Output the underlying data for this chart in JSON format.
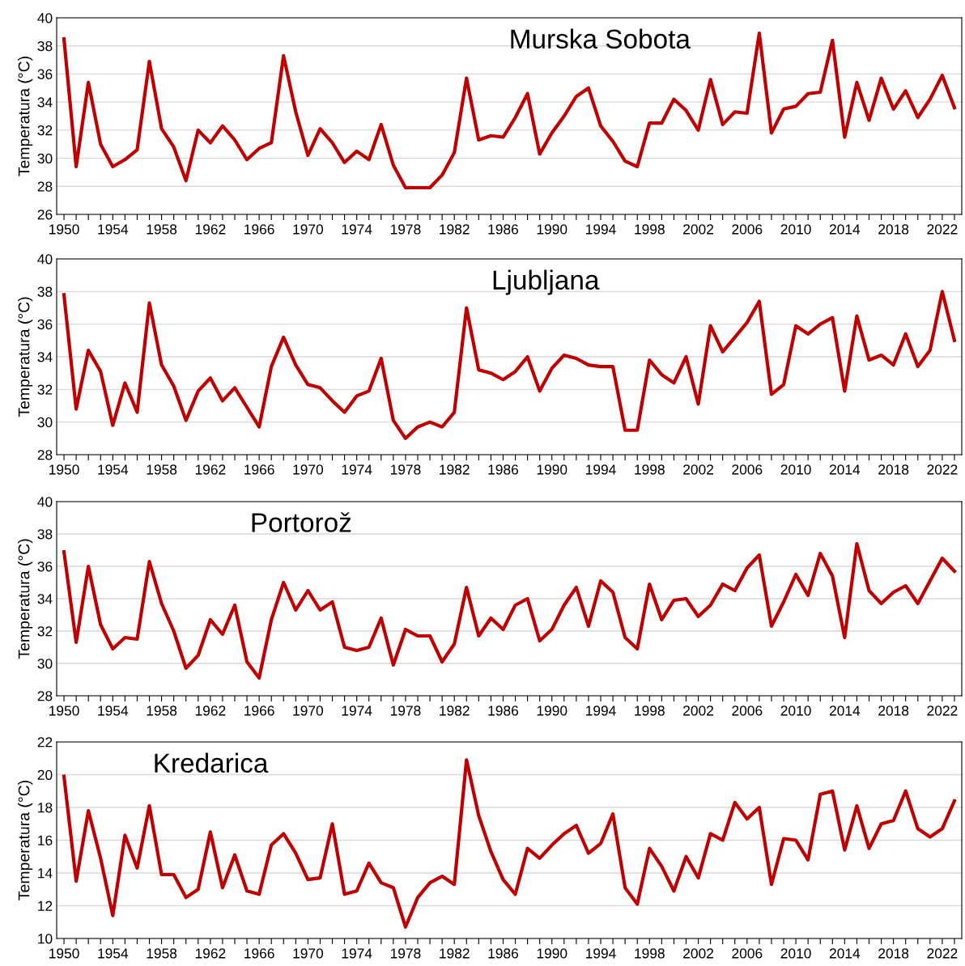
{
  "chart_data": [
    {
      "type": "line",
      "title": "Murska Sobota",
      "ylabel": "Temperatura (°C)",
      "categories": [
        "1950",
        null,
        null,
        null,
        "1954",
        null,
        null,
        null,
        "1958",
        null,
        null,
        null,
        "1962",
        null,
        null,
        null,
        "1966",
        null,
        null,
        null,
        "1970",
        null,
        null,
        null,
        "1974",
        null,
        null,
        null,
        "1978",
        null,
        null,
        null,
        "1982",
        null,
        null,
        null,
        "1986",
        null,
        null,
        null,
        "1990",
        null,
        null,
        null,
        "1994",
        null,
        null,
        null,
        "1998",
        null,
        null,
        null,
        "2002",
        null,
        null,
        null,
        "2006",
        null,
        null,
        null,
        "2010",
        null,
        null,
        null,
        "2014",
        null,
        null,
        null,
        "2018",
        null,
        null,
        null,
        "2022",
        null
      ],
      "ylim": [
        26,
        40
      ],
      "yticks": [
        26,
        28,
        30,
        32,
        34,
        36,
        38,
        40
      ],
      "grid": "y",
      "marker": "none",
      "line_style": "solid",
      "series": [
        {
          "color": "#c00000",
          "values": [
            38.5,
            29.4,
            35.4,
            31.0,
            29.4,
            29.9,
            30.6,
            36.9,
            32.1,
            30.8,
            28.4,
            32.0,
            31.1,
            32.3,
            31.3,
            29.9,
            30.7,
            31.1,
            37.3,
            33.3,
            30.2,
            32.1,
            31.1,
            29.7,
            30.5,
            29.9,
            32.4,
            29.5,
            27.9,
            27.9,
            27.9,
            28.8,
            30.4,
            35.7,
            31.3,
            31.6,
            31.5,
            32.9,
            34.6,
            30.3,
            31.8,
            33.0,
            34.4,
            35.0,
            32.3,
            31.2,
            29.8,
            29.4,
            32.5,
            32.5,
            34.2,
            33.4,
            32.0,
            35.6,
            32.4,
            33.3,
            33.2,
            38.9,
            31.8,
            33.5,
            33.7,
            34.6,
            34.7,
            38.4,
            31.5,
            35.4,
            32.7,
            35.7,
            33.5,
            34.8,
            32.9,
            34.2,
            35.9,
            33.6
          ]
        }
      ]
    },
    {
      "type": "line",
      "title": "Ljubljana",
      "ylabel": "Temperatura (°C)",
      "categories": [
        "1950",
        null,
        null,
        null,
        "1954",
        null,
        null,
        null,
        "1958",
        null,
        null,
        null,
        "1962",
        null,
        null,
        null,
        "1966",
        null,
        null,
        null,
        "1970",
        null,
        null,
        null,
        "1974",
        null,
        null,
        null,
        "1978",
        null,
        null,
        null,
        "1982",
        null,
        null,
        null,
        "1986",
        null,
        null,
        null,
        "1990",
        null,
        null,
        null,
        "1994",
        null,
        null,
        null,
        "1998",
        null,
        null,
        null,
        "2002",
        null,
        null,
        null,
        "2006",
        null,
        null,
        null,
        "2010",
        null,
        null,
        null,
        "2014",
        null,
        null,
        null,
        "2018",
        null,
        null,
        null,
        "2022",
        null
      ],
      "ylim": [
        28,
        40
      ],
      "yticks": [
        28,
        30,
        32,
        34,
        36,
        38,
        40
      ],
      "grid": "y",
      "marker": "none",
      "line_style": "solid",
      "series": [
        {
          "color": "#c00000",
          "values": [
            37.8,
            30.8,
            34.4,
            33.1,
            29.8,
            32.4,
            30.6,
            37.3,
            33.5,
            32.2,
            30.1,
            31.9,
            32.7,
            31.3,
            32.1,
            30.9,
            29.7,
            33.4,
            35.2,
            33.5,
            32.3,
            32.1,
            31.3,
            30.6,
            31.6,
            31.9,
            33.9,
            30.1,
            29.0,
            29.7,
            30.0,
            29.7,
            30.6,
            37.0,
            33.2,
            33.0,
            32.6,
            33.1,
            34.0,
            31.9,
            33.3,
            34.1,
            33.9,
            33.5,
            33.4,
            33.4,
            29.5,
            29.5,
            33.8,
            32.9,
            32.4,
            34.0,
            31.1,
            35.9,
            34.3,
            35.2,
            36.1,
            37.4,
            31.7,
            32.3,
            35.9,
            35.4,
            36.0,
            36.4,
            31.9,
            36.5,
            33.8,
            34.1,
            33.5,
            35.4,
            33.4,
            34.4,
            38.0,
            35.0
          ]
        }
      ]
    },
    {
      "type": "line",
      "title": "Portorož",
      "ylabel": "Temperatura (°C)",
      "categories": [
        "1950",
        null,
        null,
        null,
        "1954",
        null,
        null,
        null,
        "1958",
        null,
        null,
        null,
        "1962",
        null,
        null,
        null,
        "1966",
        null,
        null,
        null,
        "1970",
        null,
        null,
        null,
        "1974",
        null,
        null,
        null,
        "1978",
        null,
        null,
        null,
        "1982",
        null,
        null,
        null,
        "1986",
        null,
        null,
        null,
        "1990",
        null,
        null,
        null,
        "1994",
        null,
        null,
        null,
        "1998",
        null,
        null,
        null,
        "2002",
        null,
        null,
        null,
        "2006",
        null,
        null,
        null,
        "2010",
        null,
        null,
        null,
        "2014",
        null,
        null,
        null,
        "2018",
        null,
        null,
        null,
        "2022",
        null
      ],
      "ylim": [
        28,
        40
      ],
      "yticks": [
        28,
        30,
        32,
        34,
        36,
        38,
        40
      ],
      "grid": "y",
      "marker": "none",
      "line_style": "solid",
      "series": [
        {
          "color": "#c00000",
          "values": [
            36.9,
            31.3,
            36.0,
            32.4,
            30.9,
            31.6,
            31.5,
            36.3,
            33.7,
            32.0,
            29.7,
            30.5,
            32.7,
            31.8,
            33.6,
            30.1,
            29.1,
            32.7,
            35.0,
            33.3,
            34.5,
            33.3,
            33.8,
            31.0,
            30.8,
            31.0,
            32.8,
            29.9,
            32.1,
            31.7,
            31.7,
            30.1,
            31.2,
            34.7,
            31.7,
            32.8,
            32.1,
            33.6,
            34.0,
            31.4,
            32.1,
            33.6,
            34.7,
            32.3,
            35.1,
            34.4,
            31.6,
            30.9,
            34.9,
            32.7,
            33.9,
            34.0,
            32.9,
            33.6,
            34.9,
            34.5,
            35.9,
            36.7,
            32.3,
            33.8,
            35.5,
            34.2,
            36.8,
            35.4,
            31.6,
            37.4,
            34.5,
            33.7,
            34.4,
            34.8,
            33.7,
            35.1,
            36.5,
            35.7
          ]
        }
      ]
    },
    {
      "type": "line",
      "title": "Kredarica",
      "ylabel": "Temperatura (°C)",
      "categories": [
        "1950",
        null,
        null,
        null,
        "1954",
        null,
        null,
        null,
        "1958",
        null,
        null,
        null,
        "1962",
        null,
        null,
        null,
        "1966",
        null,
        null,
        null,
        "1970",
        null,
        null,
        null,
        "1974",
        null,
        null,
        null,
        "1978",
        null,
        null,
        null,
        "1982",
        null,
        null,
        null,
        "1986",
        null,
        null,
        null,
        "1990",
        null,
        null,
        null,
        "1994",
        null,
        null,
        null,
        "1998",
        null,
        null,
        null,
        "2002",
        null,
        null,
        null,
        "2006",
        null,
        null,
        null,
        "2010",
        null,
        null,
        null,
        "2014",
        null,
        null,
        null,
        "2018",
        null,
        null,
        null,
        "2022",
        null
      ],
      "ylim": [
        10,
        22
      ],
      "yticks": [
        10,
        12,
        14,
        16,
        18,
        20,
        22
      ],
      "grid": "y",
      "marker": "none",
      "line_style": "solid",
      "series": [
        {
          "color": "#c00000",
          "values": [
            19.9,
            13.5,
            17.8,
            14.9,
            11.4,
            16.3,
            14.3,
            18.1,
            13.9,
            13.9,
            12.5,
            13.0,
            16.5,
            13.1,
            15.1,
            12.9,
            12.7,
            15.7,
            16.4,
            15.2,
            13.6,
            13.7,
            17.0,
            12.7,
            12.9,
            14.6,
            13.4,
            13.1,
            10.7,
            12.5,
            13.4,
            13.8,
            13.3,
            20.9,
            17.5,
            15.3,
            13.6,
            12.7,
            15.5,
            14.9,
            15.7,
            16.4,
            16.9,
            15.2,
            15.8,
            17.6,
            13.1,
            12.1,
            15.5,
            14.4,
            12.9,
            15.0,
            13.7,
            16.4,
            16.0,
            18.3,
            17.3,
            18.0,
            13.3,
            16.1,
            16.0,
            14.8,
            18.8,
            19.0,
            15.4,
            18.1,
            15.5,
            17.0,
            17.2,
            19.0,
            16.7,
            16.2,
            16.7,
            18.4
          ]
        }
      ]
    }
  ]
}
